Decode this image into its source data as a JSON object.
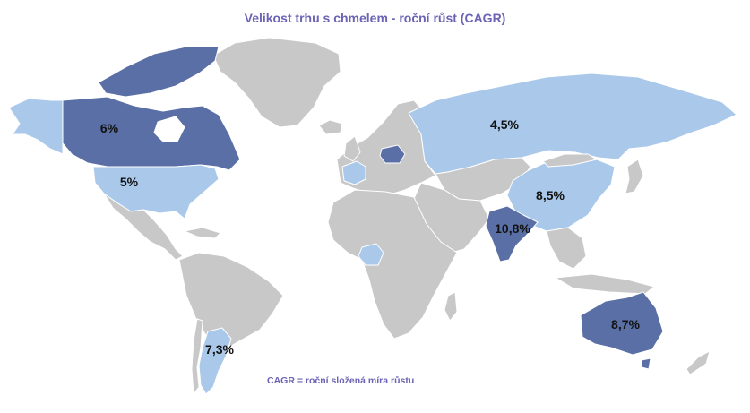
{
  "title": "Velikost trhu s chmelem - roční růst (CAGR)",
  "footnote": "CAGR = roční složená míra růstu",
  "colors": {
    "title": "#6b63b5",
    "base": "#c8c8c8",
    "light": "#a9c8ea",
    "dark": "#5a6fa5",
    "border": "#ffffff"
  },
  "regions": [
    {
      "name": "Kanada",
      "shade": "dark",
      "label": "6%"
    },
    {
      "name": "USA",
      "shade": "light",
      "label": "5%"
    },
    {
      "name": "Rusko",
      "shade": "light",
      "label": "4,5%"
    },
    {
      "name": "Čína",
      "shade": "light",
      "label": "8,5%"
    },
    {
      "name": "Indie",
      "shade": "dark",
      "label": "10,8%"
    },
    {
      "name": "Austrálie",
      "shade": "dark",
      "label": "8,7%"
    },
    {
      "name": "Argentina",
      "shade": "light",
      "label": "7,3%"
    },
    {
      "name": "Aljaška",
      "shade": "light",
      "label": ""
    },
    {
      "name": "Polsko",
      "shade": "dark",
      "label": ""
    },
    {
      "name": "Francie",
      "shade": "light",
      "label": ""
    },
    {
      "name": "Nigérie",
      "shade": "light",
      "label": ""
    }
  ]
}
